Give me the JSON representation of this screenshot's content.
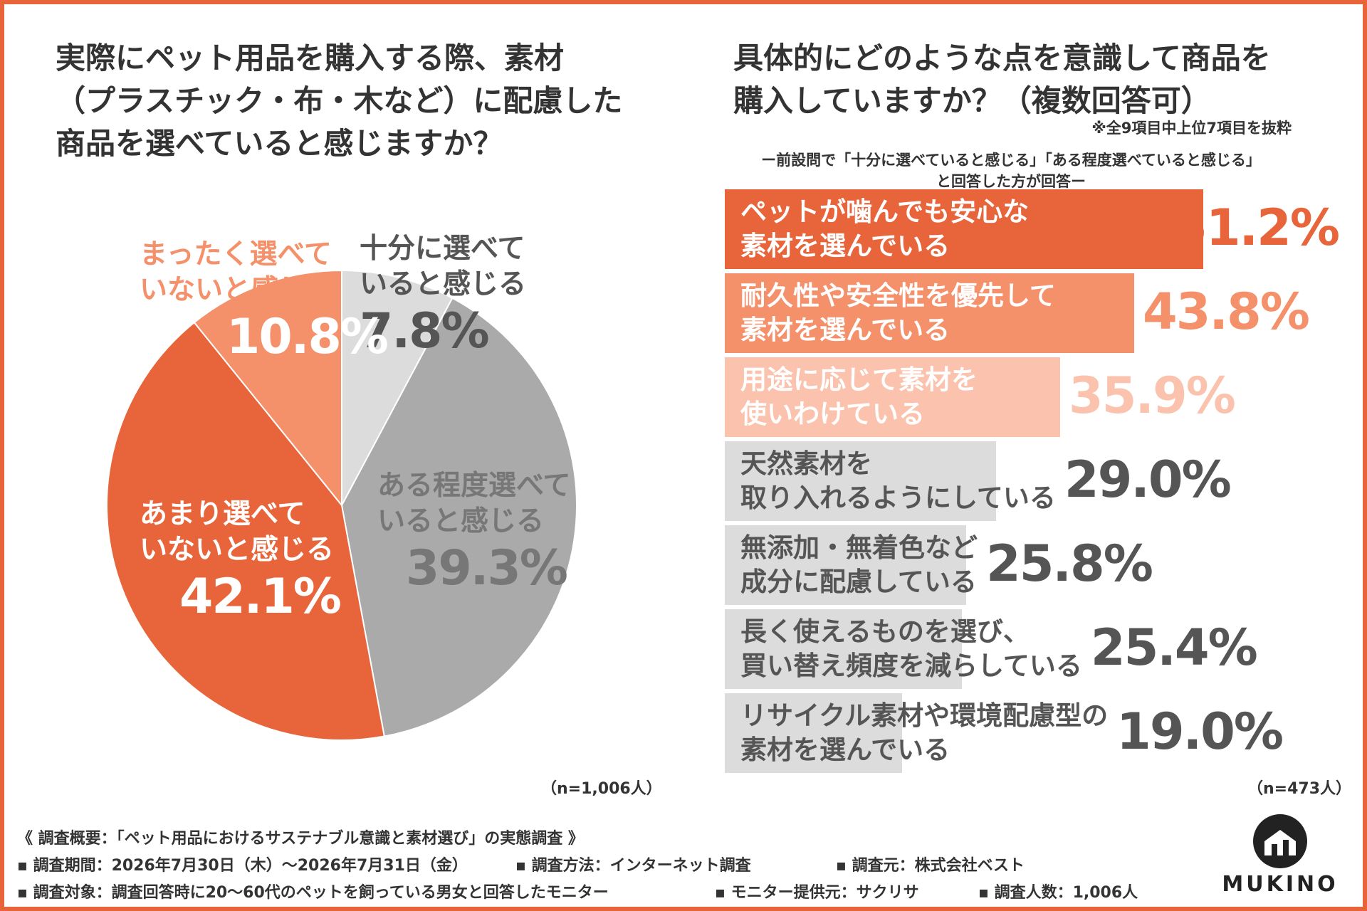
{
  "left": {
    "title_lines": [
      "実際にペット用品を購入する際、素材",
      "（プラスチック・布・木など）に配慮した",
      "商品を選べていると感じますか？"
    ],
    "n_note": "（n=1,006人）"
  },
  "right": {
    "title_lines": [
      "具体的にどのような点を意識して商品を",
      "購入していますか？（複数回答可）"
    ],
    "note": "※全9項目中上位7項目を抜粋",
    "sub_note_lines": [
      "ー前設問で「十分に選べていると感じる」「ある程度選べていると感じる」",
      "と回答した方が回答ー"
    ],
    "n_note": "（n=473人）"
  },
  "chart_data": [
    {
      "type": "pie",
      "categories": [
        "十分に選べていると感じる",
        "ある程度選べていると感じる",
        "あまり選べていないと感じる",
        "まったく選べていないと感じる"
      ],
      "values": [
        7.8,
        39.3,
        42.1,
        10.8
      ],
      "value_labels": [
        "7.8%",
        "39.3%",
        "42.1%",
        "10.8%"
      ],
      "label_lines": [
        [
          "十分に選べて",
          "いると感じる"
        ],
        [
          "ある程度選べて",
          "いると感じる"
        ],
        [
          "あまり選べて",
          "いないと感じる"
        ],
        [
          "まったく選べて",
          "いないと感じる"
        ]
      ],
      "colors": [
        "#dcdcdc",
        "#aaaaaa",
        "#e8643a",
        "#f4906a"
      ],
      "label_colors": [
        "#555555",
        "#777777",
        "#ffffff",
        "#ffffff"
      ],
      "top_label_color": "#f4906a"
    },
    {
      "type": "bar",
      "orientation": "horizontal",
      "categories": [
        "ペットが噛んでも安心な素材を選んでいる",
        "耐久性や安全性を優先して素材を選んでいる",
        "用途に応じて素材を使いわけている",
        "天然素材を取り入れるようにしている",
        "無添加・無着色など成分に配慮している",
        "長く使えるものを選び、買い替え頻度を減らしている",
        "リサイクル素材や環境配慮型の素材を選んでいる"
      ],
      "label_lines": [
        [
          "ペットが噛んでも安心な",
          "素材を選んでいる"
        ],
        [
          "耐久性や安全性を優先して",
          "素材を選んでいる"
        ],
        [
          "用途に応じて素材を",
          "使いわけている"
        ],
        [
          "天然素材を",
          "取り入れるようにしている"
        ],
        [
          "無添加・無着色など",
          "成分に配慮している"
        ],
        [
          "長く使えるものを選び、",
          "買い替え頻度を減らしている"
        ],
        [
          "リサイクル素材や環境配慮型の",
          "素材を選んでいる"
        ]
      ],
      "values": [
        51.2,
        43.8,
        35.9,
        29.0,
        25.8,
        25.4,
        19.0
      ],
      "value_labels": [
        "51.2%",
        "43.8%",
        "35.9%",
        "29.0%",
        "25.8%",
        "25.4%",
        "19.0%"
      ],
      "colors": [
        "#e8643a",
        "#f4906a",
        "#fbc3ae",
        "#dcdcdc",
        "#dcdcdc",
        "#dcdcdc",
        "#dcdcdc"
      ],
      "label_colors": [
        "#ffffff",
        "#ffffff",
        "#ffffff",
        "#555555",
        "#555555",
        "#555555",
        "#555555"
      ],
      "pct_colors": [
        "#e8643a",
        "#f4906a",
        "#fbc3ae",
        "#555555",
        "#555555",
        "#555555",
        "#555555"
      ]
    }
  ],
  "footer": {
    "line1": "《 調査概要：「ペット用品におけるサステナブル意識と素材選び」の実態調査 》",
    "period": "▪ 調査期間：2026年7月30日（木）～2026年7月31日（金）",
    "method": "▪ 調査方法：インターネット調査",
    "source": "▪ 調査元：株式会社ベスト",
    "target": "▪ 調査対象：調査回答時に20～60代のペットを飼っている男女と回答したモニター",
    "provider": "▪ モニター提供元：サクリサ",
    "count": "▪ 調査人数：1,006人"
  },
  "logo": {
    "text": "MUKINO",
    "icon": "house-logo-icon"
  }
}
